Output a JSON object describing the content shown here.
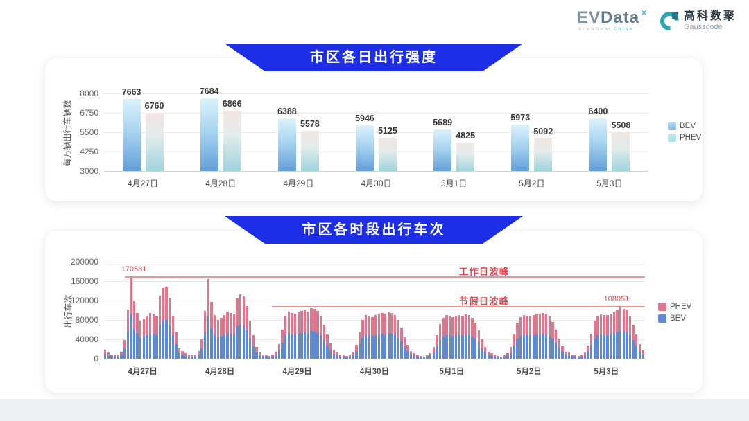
{
  "header": {
    "evdata_logo": {
      "ev": "EV",
      "data": "Data",
      "sup": "✕",
      "subtext_1": "SHANGHAI",
      "subtext_2": "CHINA"
    },
    "gausscode_logo": {
      "cn": "高科数聚",
      "en": "Gausscode"
    }
  },
  "colors": {
    "banner_blue": "#1c2fe6",
    "bev_gradient_top": "#dcf2fb",
    "bev_gradient_bottom": "#649fd9",
    "phev_gradient_top": "#f4e6e1",
    "phev_gradient_bottom": "#9fd3dc",
    "stack_bev_blue": "#5e88d8",
    "stack_phev_pink": "#e0768c",
    "annotation_red": "#e0474e",
    "refline_red": "#ec9393"
  },
  "chart_data": [
    {
      "type": "bar",
      "title": "市区各日出行强度",
      "ylabel": "每万辆出行车辆数",
      "ymin": 3000,
      "ymax": 8000,
      "yticks": [
        3000,
        4250,
        5500,
        6750,
        8000
      ],
      "grid": true,
      "legend_position": "right",
      "categories": [
        "4月27日",
        "4月28日",
        "4月29日",
        "4月30日",
        "5月1日",
        "5月2日",
        "5月3日"
      ],
      "series": [
        {
          "name": "BEV",
          "values": [
            7663,
            7684,
            6388,
            5946,
            5689,
            5973,
            6400
          ]
        },
        {
          "name": "PHEV",
          "values": [
            6760,
            6866,
            5578,
            5125,
            4825,
            5092,
            5508
          ]
        }
      ],
      "legend": [
        "BEV",
        "PHEV"
      ]
    },
    {
      "type": "bar",
      "stacked": true,
      "title": "市区各时段出行车次",
      "ylabel": "出行车次",
      "ymin": 0,
      "ymax": 200000,
      "yticks": [
        0,
        40000,
        80000,
        120000,
        160000,
        200000
      ],
      "grid": true,
      "legend_position": "right",
      "categories": [
        "4月27日",
        "4月28日",
        "4月29日",
        "4月30日",
        "5月1日",
        "5月2日",
        "5月3日"
      ],
      "annotations": {
        "workday_peak": {
          "label": "工作日波峰",
          "value": 170581,
          "value_label": "170581"
        },
        "holiday_peak": {
          "label": "节假日波峰",
          "value": 108051,
          "value_label": "108051"
        }
      },
      "legend": [
        "PHEV",
        "BEV"
      ],
      "days": [
        {
          "label": "4月27日",
          "bev": [
            10000,
            7000,
            5000,
            4000,
            4500,
            8500,
            21000,
            55000,
            91000,
            62000,
            52000,
            43000,
            45000,
            48000,
            52000,
            51000,
            48000,
            70000,
            79000,
            80000,
            68000,
            48000,
            30000,
            12000
          ],
          "phev": [
            8000,
            6000,
            4000,
            3000,
            3500,
            6500,
            17000,
            46000,
            79581,
            57000,
            43000,
            35000,
            37000,
            40000,
            43000,
            42000,
            40000,
            60000,
            67000,
            69000,
            58000,
            40000,
            25000,
            10000
          ]
        },
        {
          "label": "4月28日",
          "bev": [
            9000,
            6000,
            4500,
            4000,
            5000,
            9000,
            22000,
            53000,
            88000,
            63000,
            49000,
            44000,
            46000,
            49000,
            53000,
            52000,
            50000,
            67000,
            72000,
            69000,
            58000,
            42000,
            26000,
            14000
          ],
          "phev": [
            7000,
            5000,
            3500,
            3000,
            4000,
            7000,
            18000,
            45000,
            76000,
            54000,
            41000,
            36000,
            38000,
            41000,
            44000,
            43000,
            42000,
            58000,
            61000,
            59000,
            50000,
            36000,
            22000,
            11000
          ]
        },
        {
          "label": "4月29日",
          "bev": [
            8000,
            5000,
            4000,
            3500,
            4500,
            8000,
            16000,
            33000,
            48000,
            53000,
            52000,
            50000,
            52000,
            53000,
            54000,
            52000,
            57000,
            56000,
            53000,
            48000,
            38000,
            27000,
            17000,
            10000
          ],
          "phev": [
            6000,
            4000,
            3000,
            2500,
            3500,
            6000,
            14000,
            27000,
            40000,
            44000,
            43000,
            42000,
            44000,
            45000,
            46000,
            45000,
            48000,
            47000,
            45000,
            40000,
            32000,
            23000,
            15000,
            8000
          ]
        },
        {
          "label": "4月30日",
          "bev": [
            7000,
            5000,
            4000,
            3500,
            4500,
            7000,
            15000,
            30000,
            43000,
            49000,
            48000,
            47000,
            49000,
            50000,
            52000,
            50000,
            52000,
            52000,
            49000,
            43000,
            35000,
            24000,
            15000,
            9000
          ],
          "phev": [
            6000,
            4000,
            3000,
            2500,
            3500,
            6000,
            13000,
            25000,
            37000,
            41000,
            40000,
            39000,
            41000,
            42000,
            43000,
            43000,
            44000,
            43000,
            41000,
            37000,
            29000,
            21000,
            13000,
            7000
          ]
        },
        {
          "label": "5月1日",
          "bev": [
            6500,
            4500,
            3500,
            3000,
            4000,
            6500,
            13000,
            26000,
            39000,
            46000,
            49000,
            48000,
            47000,
            48000,
            49000,
            48000,
            50000,
            49000,
            46000,
            41000,
            31000,
            22000,
            13500,
            7500
          ],
          "phev": [
            5500,
            3500,
            2500,
            2000,
            3000,
            5500,
            11000,
            22000,
            33000,
            39000,
            41000,
            40000,
            39000,
            40000,
            41000,
            40000,
            42000,
            41000,
            39000,
            34000,
            27000,
            18000,
            11500,
            6500
          ]
        },
        {
          "label": "5月2日",
          "bev": [
            6500,
            4500,
            3500,
            3000,
            4000,
            6500,
            13500,
            27000,
            41000,
            47000,
            49000,
            48000,
            48000,
            49000,
            50000,
            49000,
            51000,
            50000,
            47000,
            41000,
            32000,
            23000,
            14000,
            8000
          ],
          "phev": [
            5500,
            3500,
            2500,
            2000,
            3000,
            5500,
            11500,
            23000,
            34000,
            39000,
            41000,
            41000,
            40000,
            41000,
            43000,
            42000,
            43000,
            42000,
            40000,
            35000,
            28000,
            19000,
            12000,
            7000
          ]
        },
        {
          "label": "5月3日",
          "bev": [
            7000,
            5000,
            4000,
            3500,
            4500,
            7000,
            14500,
            28000,
            42000,
            48000,
            50000,
            49000,
            49000,
            50000,
            52000,
            54000,
            59000,
            56000,
            54000,
            48000,
            38000,
            27000,
            16000,
            9000
          ],
          "phev": [
            6000,
            4000,
            3000,
            2500,
            3500,
            6000,
            12500,
            24000,
            36000,
            40000,
            42000,
            41000,
            41000,
            43000,
            44000,
            46000,
            49051,
            47000,
            46000,
            40000,
            32000,
            23000,
            14000,
            8000
          ]
        }
      ]
    }
  ]
}
